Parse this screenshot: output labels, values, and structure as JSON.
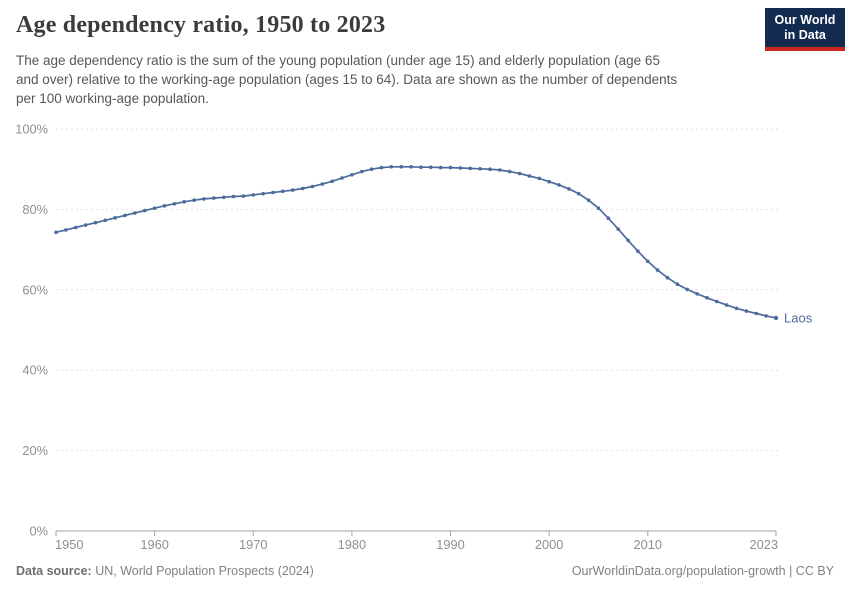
{
  "header": {
    "title": "Age dependency ratio, 1950 to 2023",
    "subtitle_lines": [
      "The age dependency ratio is the sum of the young population (under age 15) and elderly population (age 65",
      "and over) relative to the working-age population (ages 15 to 64). Data are shown as the number of dependents",
      "per 100 working-age population."
    ],
    "logo": {
      "line1": "Our World",
      "line2": "in Data"
    }
  },
  "chart_data": {
    "type": "line",
    "title": "Age dependency ratio, 1950 to 2023",
    "xlabel": "",
    "ylabel": "",
    "xlim": [
      1950,
      2023
    ],
    "ylim": [
      0,
      100
    ],
    "grid": "horizontal-dashed",
    "legend_position": "end-of-line-label",
    "yticks": [
      {
        "value": 0,
        "label": "0%"
      },
      {
        "value": 20,
        "label": "20%"
      },
      {
        "value": 40,
        "label": "40%"
      },
      {
        "value": 60,
        "label": "60%"
      },
      {
        "value": 80,
        "label": "80%"
      },
      {
        "value": 100,
        "label": "100%"
      }
    ],
    "xticks": [
      1950,
      1960,
      1970,
      1980,
      1990,
      2000,
      2010,
      2023
    ],
    "series": [
      {
        "name": "Laos",
        "color": "#4c6a9c",
        "x": [
          1950,
          1951,
          1952,
          1953,
          1954,
          1955,
          1956,
          1957,
          1958,
          1959,
          1960,
          1961,
          1962,
          1963,
          1964,
          1965,
          1966,
          1967,
          1968,
          1969,
          1970,
          1971,
          1972,
          1973,
          1974,
          1975,
          1976,
          1977,
          1978,
          1979,
          1980,
          1981,
          1982,
          1983,
          1984,
          1985,
          1986,
          1987,
          1988,
          1989,
          1990,
          1991,
          1992,
          1993,
          1994,
          1995,
          1996,
          1997,
          1998,
          1999,
          2000,
          2001,
          2002,
          2003,
          2004,
          2005,
          2006,
          2007,
          2008,
          2009,
          2010,
          2011,
          2012,
          2013,
          2014,
          2015,
          2016,
          2017,
          2018,
          2019,
          2020,
          2021,
          2022,
          2023
        ],
        "values": [
          74.3,
          74.9,
          75.5,
          76.1,
          76.7,
          77.3,
          77.9,
          78.5,
          79.1,
          79.7,
          80.3,
          80.9,
          81.4,
          81.9,
          82.3,
          82.6,
          82.8,
          83.0,
          83.2,
          83.3,
          83.6,
          83.9,
          84.2,
          84.5,
          84.8,
          85.2,
          85.7,
          86.3,
          87.0,
          87.8,
          88.6,
          89.4,
          90.0,
          90.4,
          90.6,
          90.6,
          90.6,
          90.5,
          90.5,
          90.4,
          90.4,
          90.3,
          90.2,
          90.1,
          90.0,
          89.8,
          89.4,
          88.9,
          88.3,
          87.7,
          86.9,
          86.1,
          85.1,
          83.9,
          82.3,
          80.3,
          77.8,
          75.1,
          72.3,
          69.6,
          67.1,
          64.9,
          63.0,
          61.4,
          60.1,
          59.0,
          58.0,
          57.1,
          56.2,
          55.4,
          54.7,
          54.1,
          53.5,
          53.0
        ]
      }
    ]
  },
  "footer": {
    "source_label": "Data source:",
    "source_value": "UN, World Population Prospects (2024)",
    "link_text": "OurWorldinData.org/population-growth | CC BY"
  },
  "colors": {
    "line": "#4c6a9c",
    "logo_navy": "#122b4e",
    "logo_red": "#cb2721",
    "gridline": "#e2e2e2",
    "axis": "#a3a3a3",
    "tick_label": "#8f8f8f"
  }
}
